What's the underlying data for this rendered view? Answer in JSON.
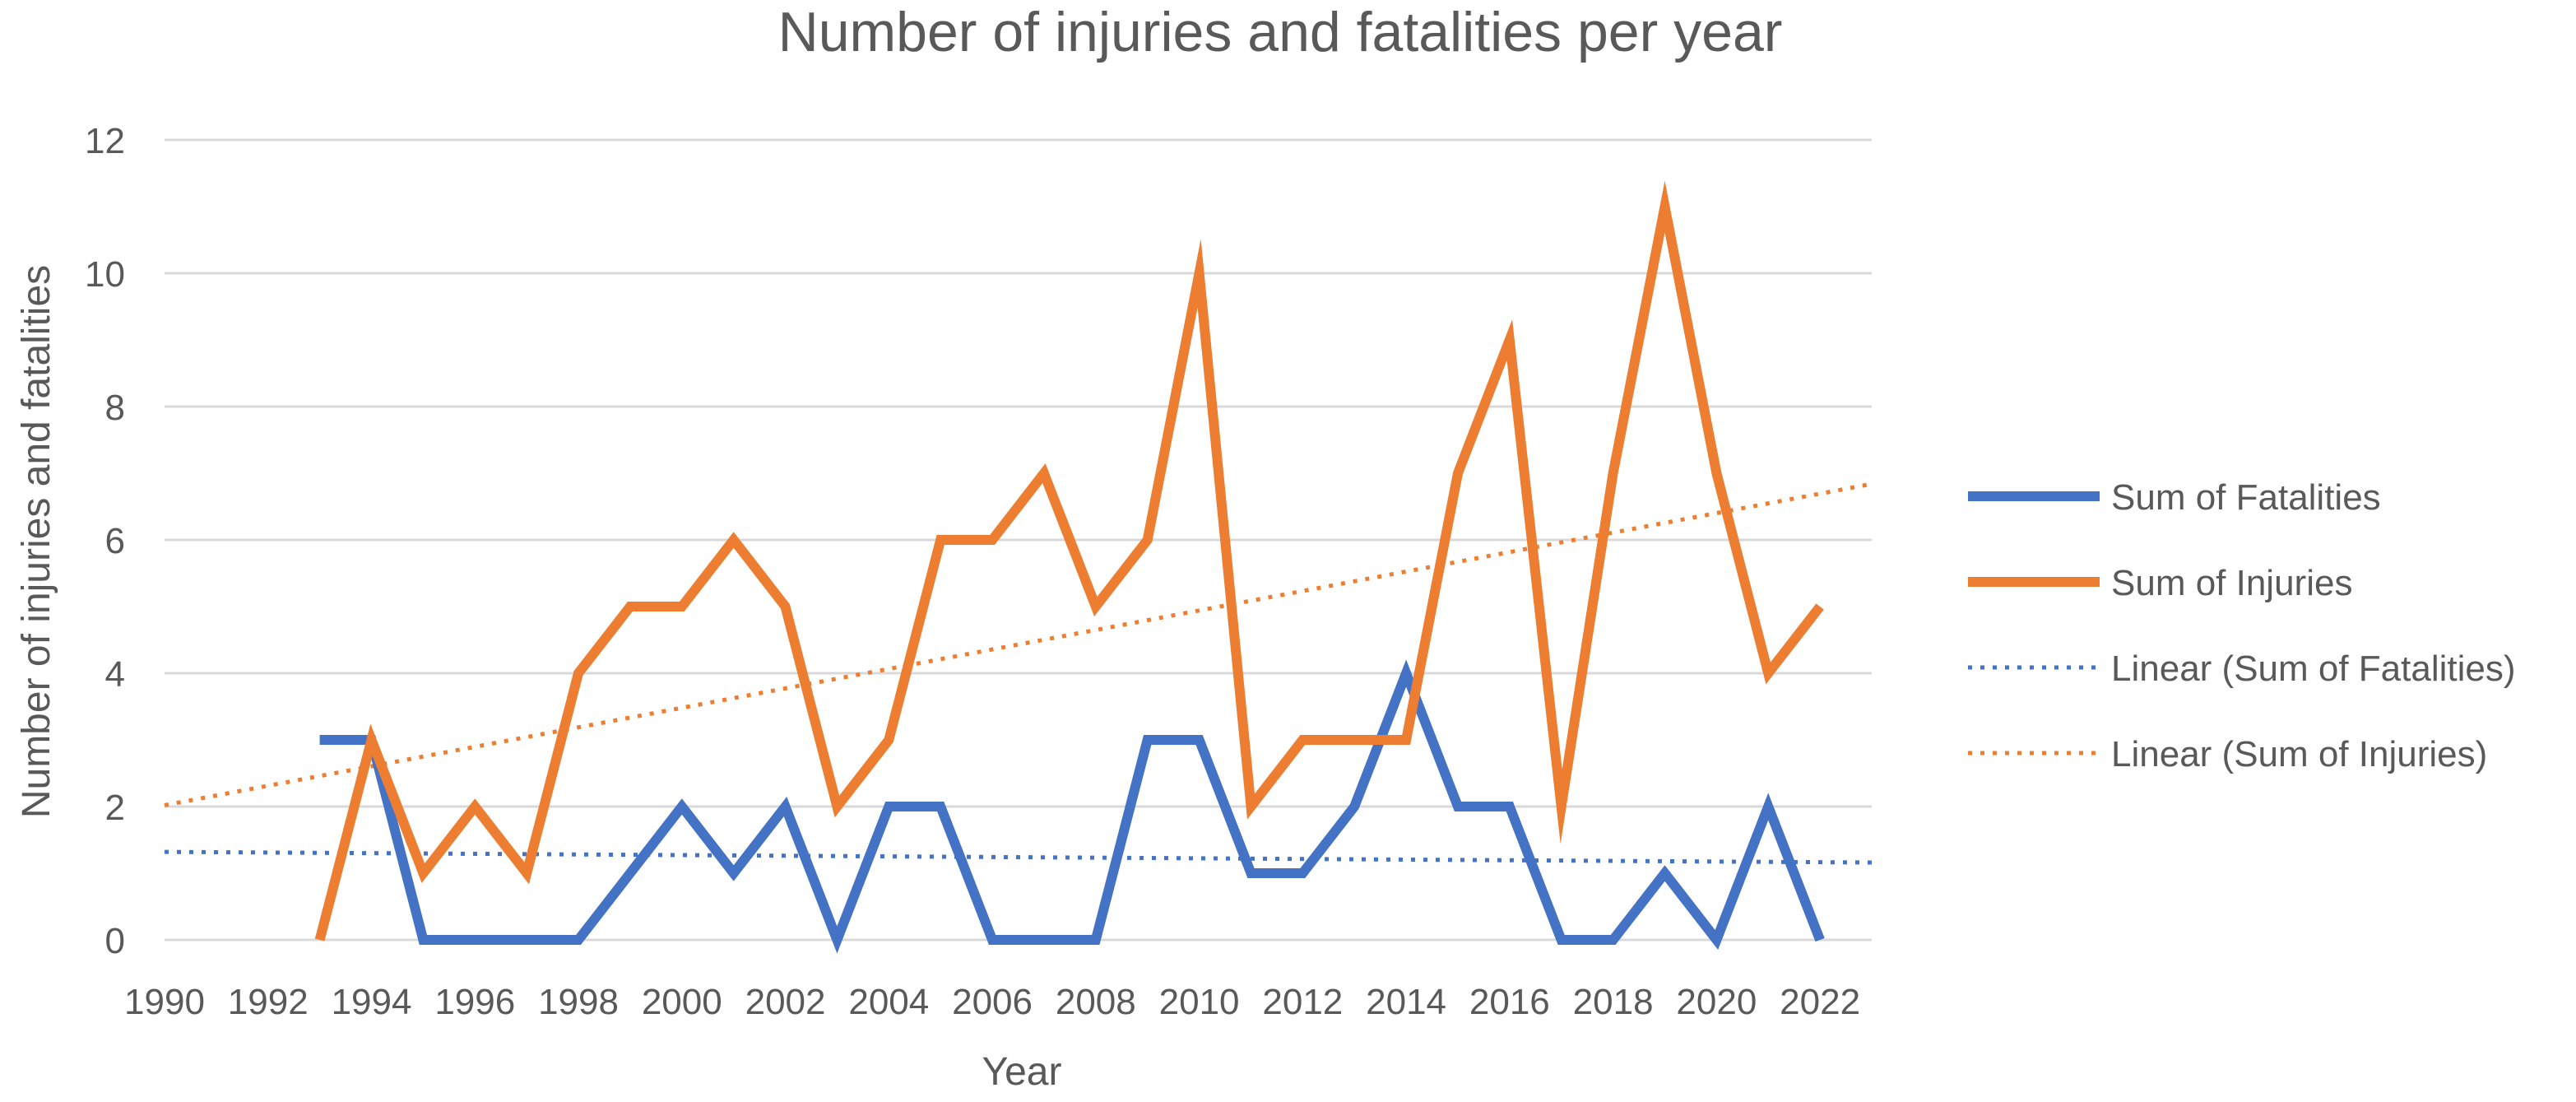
{
  "chart_data": {
    "type": "line",
    "title": "Number of injuries and fatalities per year",
    "xlabel": "Year",
    "ylabel": "Number of injuries and fatalities",
    "xlim": [
      1990,
      2023
    ],
    "ylim": [
      0,
      12
    ],
    "x_ticks": [
      1990,
      1992,
      1994,
      1996,
      1998,
      2000,
      2002,
      2004,
      2006,
      2008,
      2010,
      2012,
      2014,
      2016,
      2018,
      2020,
      2022
    ],
    "y_ticks": [
      0,
      2,
      4,
      6,
      8,
      10,
      12
    ],
    "grid": "horizontal",
    "legend_position": "right",
    "series": [
      {
        "name": "Sum of Fatalities",
        "color": "#4472C4",
        "style": "solid",
        "x": [
          1993,
          1994,
          1995,
          1996,
          1997,
          1998,
          1999,
          2000,
          2001,
          2002,
          2003,
          2004,
          2005,
          2006,
          2007,
          2008,
          2009,
          2010,
          2011,
          2012,
          2013,
          2014,
          2015,
          2016,
          2017,
          2018,
          2019,
          2020,
          2021,
          2022
        ],
        "values": [
          3,
          3,
          0,
          0,
          0,
          0,
          1,
          2,
          1,
          2,
          0,
          2,
          2,
          0,
          0,
          0,
          3,
          3,
          1,
          1,
          2,
          4,
          2,
          2,
          0,
          0,
          1,
          0,
          2,
          0
        ]
      },
      {
        "name": "Sum of Injuries",
        "color": "#ED7D31",
        "style": "solid",
        "x": [
          1993,
          1994,
          1995,
          1996,
          1997,
          1998,
          1999,
          2000,
          2001,
          2002,
          2003,
          2004,
          2005,
          2006,
          2007,
          2008,
          2009,
          2010,
          2011,
          2012,
          2013,
          2014,
          2015,
          2016,
          2017,
          2018,
          2019,
          2020,
          2021,
          2022
        ],
        "values": [
          0,
          3,
          1,
          2,
          1,
          4,
          5,
          5,
          6,
          5,
          2,
          3,
          6,
          6,
          7,
          5,
          6,
          10,
          2,
          3,
          3,
          3,
          7,
          9,
          2,
          7,
          11,
          7,
          4,
          5
        ]
      },
      {
        "name": "Linear (Sum of Fatalities)",
        "color": "#4472C4",
        "style": "dotted",
        "x": [
          1990,
          2023
        ],
        "values": [
          1.32,
          1.16
        ]
      },
      {
        "name": "Linear (Sum of Injuries)",
        "color": "#ED7D31",
        "style": "dotted",
        "x": [
          1990,
          2023
        ],
        "values": [
          2.02,
          6.84
        ]
      }
    ]
  }
}
